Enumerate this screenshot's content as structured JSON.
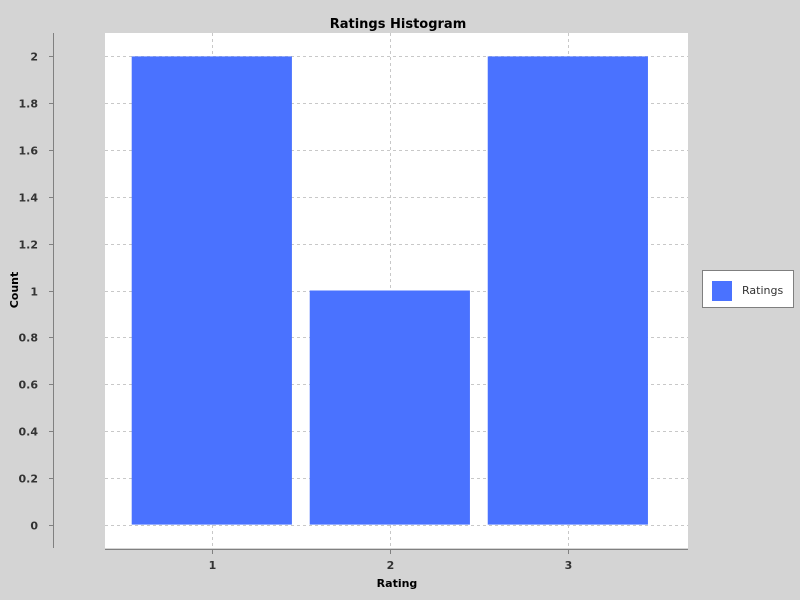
{
  "chart_data": {
    "type": "bar",
    "title": "Ratings Histogram",
    "xlabel": "Rating",
    "ylabel": "Count",
    "categories": [
      "1",
      "2",
      "3"
    ],
    "series": [
      {
        "name": "Ratings",
        "values": [
          2,
          1,
          2
        ],
        "color": "#4a72ff"
      }
    ],
    "ylim": [
      -0.1,
      2.1
    ],
    "y_ticks": [
      "0",
      "0.2",
      "0.4",
      "0.6",
      "0.8",
      "1",
      "1.2",
      "1.4",
      "1.6",
      "1.8",
      "2"
    ],
    "grid": true,
    "legend": "right"
  }
}
